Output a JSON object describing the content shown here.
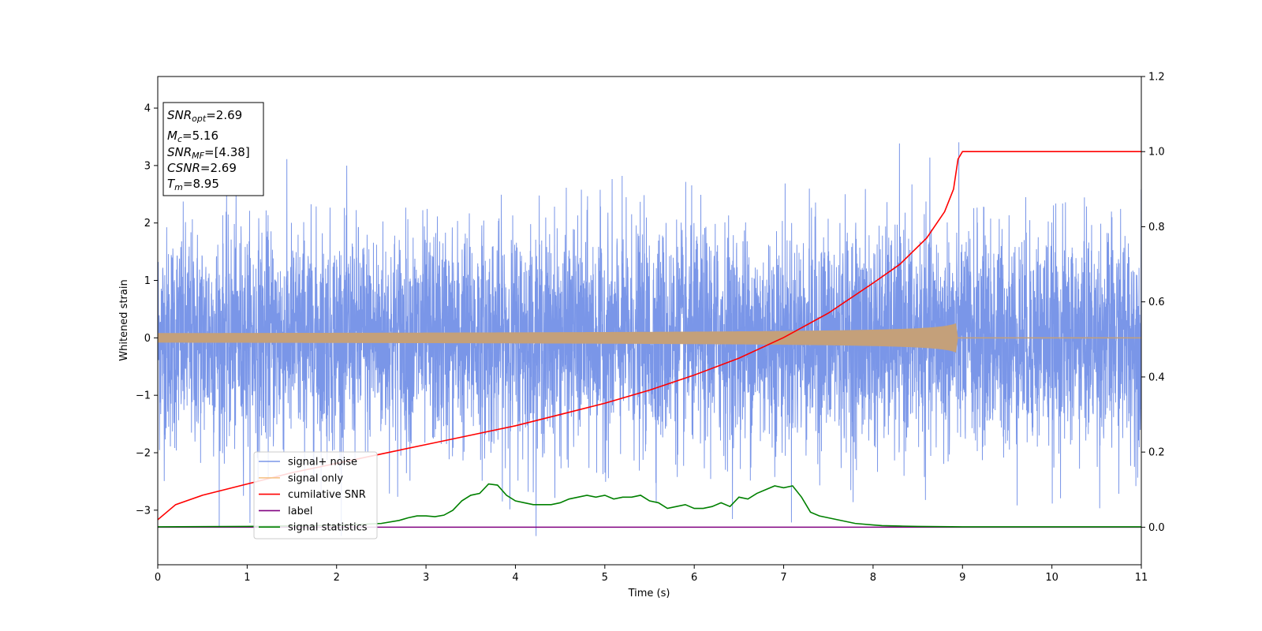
{
  "chart_data": {
    "type": "line",
    "xlabel": "Time (s)",
    "ylabel": "Whitened strain",
    "xlim": [
      0,
      11
    ],
    "ylim": [
      -3.95,
      4.55
    ],
    "y2lim": [
      -0.1,
      1.2
    ],
    "grid": false,
    "legend_position": "lower-left",
    "x_ticks": [
      "0",
      "1",
      "2",
      "3",
      "4",
      "5",
      "6",
      "7",
      "8",
      "9",
      "10",
      "11"
    ],
    "y_ticks": [
      {
        "value": 4,
        "label": "4"
      },
      {
        "value": 3,
        "label": "3"
      },
      {
        "value": 2,
        "label": "2"
      },
      {
        "value": 1,
        "label": "1"
      },
      {
        "value": 0,
        "label": "0"
      },
      {
        "value": -1,
        "label": "−1"
      },
      {
        "value": -2,
        "label": "−2"
      },
      {
        "value": -3,
        "label": "−3"
      }
    ],
    "y2_ticks": [
      {
        "value": 1.2,
        "label": "1.2"
      },
      {
        "value": 1.0,
        "label": "1.0"
      },
      {
        "value": 0.8,
        "label": "0.8"
      },
      {
        "value": 0.6,
        "label": "0.6"
      },
      {
        "value": 0.4,
        "label": "0.4"
      },
      {
        "value": 0.2,
        "label": "0.2"
      },
      {
        "value": 0.0,
        "label": "0.0"
      }
    ],
    "annotation": [
      {
        "name": "SNR",
        "sub": "opt",
        "value": "=2.69"
      },
      {
        "name": "M",
        "sub": "c",
        "value": "=5.16"
      },
      {
        "name": "SNR",
        "sub": "MF",
        "value": "=[4.38]"
      },
      {
        "name": "CSNR",
        "sub": "",
        "value": "=2.69"
      },
      {
        "name": "T",
        "sub": "m",
        "value": "=8.95"
      }
    ],
    "series": [
      {
        "name": "signal+ noise",
        "color": "#7a96e8",
        "axis": "left",
        "kind": "noise",
        "spread_std": 1.0,
        "range_approx": [
          -3.45,
          4.15
        ]
      },
      {
        "name": "signal only",
        "color": "#f5c48a",
        "fill_color": "#c4a07a",
        "axis": "left",
        "kind": "chirp",
        "merger_time": 8.95,
        "peak_amplitude": 0.27
      },
      {
        "name": "cumilative SNR",
        "color": "#ff0000",
        "axis": "right",
        "x": [
          0,
          0.2,
          0.5,
          1,
          1.5,
          2,
          2.5,
          3,
          3.5,
          4,
          4.5,
          5,
          5.5,
          6,
          6.5,
          7,
          7.5,
          8,
          8.3,
          8.6,
          8.8,
          8.9,
          8.95,
          9.0,
          10,
          11
        ],
        "y": [
          0.02,
          0.06,
          0.085,
          0.115,
          0.145,
          0.17,
          0.195,
          0.22,
          0.245,
          0.27,
          0.3,
          0.33,
          0.365,
          0.405,
          0.45,
          0.505,
          0.57,
          0.65,
          0.7,
          0.77,
          0.84,
          0.9,
          0.98,
          1.0,
          1.0,
          1.0
        ]
      },
      {
        "name": "label",
        "color": "#800080",
        "axis": "right",
        "x": [
          0,
          11
        ],
        "y": [
          0,
          0
        ]
      },
      {
        "name": "signal statistics",
        "color": "#008000",
        "axis": "right",
        "x": [
          0,
          1.0,
          2.0,
          2.5,
          2.7,
          2.8,
          2.9,
          3.0,
          3.1,
          3.2,
          3.3,
          3.4,
          3.5,
          3.6,
          3.7,
          3.8,
          3.9,
          4.0,
          4.1,
          4.2,
          4.3,
          4.4,
          4.5,
          4.6,
          4.7,
          4.8,
          4.9,
          5.0,
          5.1,
          5.2,
          5.3,
          5.4,
          5.5,
          5.6,
          5.7,
          5.8,
          5.9,
          6.0,
          6.1,
          6.2,
          6.3,
          6.4,
          6.5,
          6.6,
          6.7,
          6.8,
          6.9,
          7.0,
          7.1,
          7.2,
          7.3,
          7.4,
          7.6,
          7.8,
          8.0,
          8.1,
          8.3,
          8.5,
          9.0,
          10,
          11
        ],
        "y": [
          0.001,
          0.002,
          0.005,
          0.01,
          0.018,
          0.025,
          0.03,
          0.03,
          0.028,
          0.032,
          0.045,
          0.07,
          0.085,
          0.09,
          0.115,
          0.112,
          0.085,
          0.07,
          0.065,
          0.06,
          0.06,
          0.06,
          0.065,
          0.075,
          0.08,
          0.085,
          0.08,
          0.085,
          0.075,
          0.08,
          0.08,
          0.085,
          0.07,
          0.065,
          0.05,
          0.055,
          0.06,
          0.05,
          0.05,
          0.055,
          0.065,
          0.055,
          0.08,
          0.075,
          0.09,
          0.1,
          0.11,
          0.105,
          0.11,
          0.08,
          0.04,
          0.03,
          0.02,
          0.01,
          0.006,
          0.004,
          0.003,
          0.002,
          0.001,
          0.001,
          0.001
        ]
      }
    ]
  }
}
